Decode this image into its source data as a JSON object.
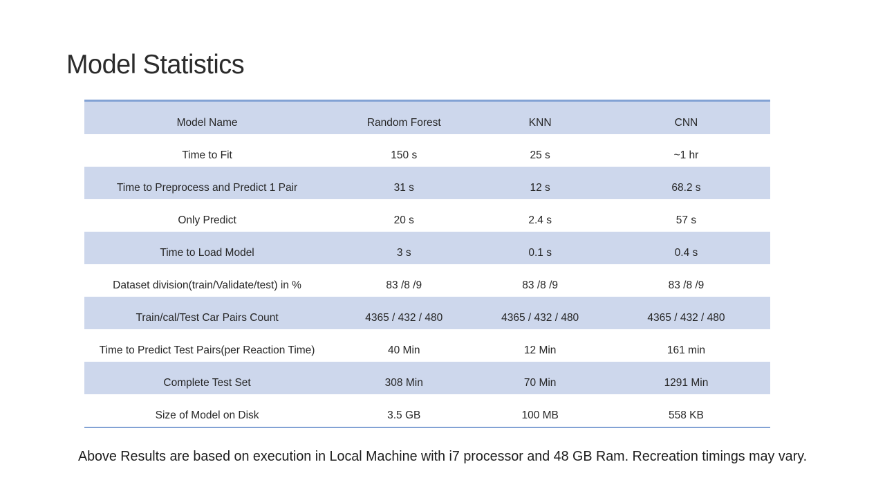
{
  "slide": {
    "title": "Model Statistics",
    "footnote": "Above Results are based on execution in Local Machine with i7 processor and 48 GB Ram. Recreation timings may vary."
  },
  "table": {
    "headers": [
      "Model Name",
      "Random Forest",
      "KNN",
      "CNN"
    ],
    "rows": [
      [
        "Time to Fit",
        "150 s",
        "25 s",
        "~1 hr"
      ],
      [
        "Time to Preprocess and Predict 1 Pair",
        "31 s",
        "12 s",
        "68.2 s"
      ],
      [
        "Only Predict",
        "20 s",
        "2.4 s",
        "57 s"
      ],
      [
        "Time to Load Model",
        "3 s",
        "0.1 s",
        "0.4 s"
      ],
      [
        "Dataset division(train/Validate/test) in %",
        "83 /8 /9",
        "83 /8 /9",
        "83 /8 /9"
      ],
      [
        "Train/cal/Test Car Pairs Count",
        "4365 / 432 / 480",
        "4365 / 432 / 480",
        "4365 / 432 / 480"
      ],
      [
        "Time to Predict Test Pairs(per Reaction Time)",
        "40 Min",
        "12 Min",
        "161 min"
      ],
      [
        "Complete Test Set",
        "308 Min",
        "70 Min",
        "1291 Min"
      ],
      [
        "Size of Model on Disk",
        "3.5 GB",
        "100 MB",
        "558 KB"
      ]
    ],
    "colors": {
      "band_fill": "#cdd7ec",
      "border": "#82a2d4",
      "text": "#262626"
    }
  }
}
